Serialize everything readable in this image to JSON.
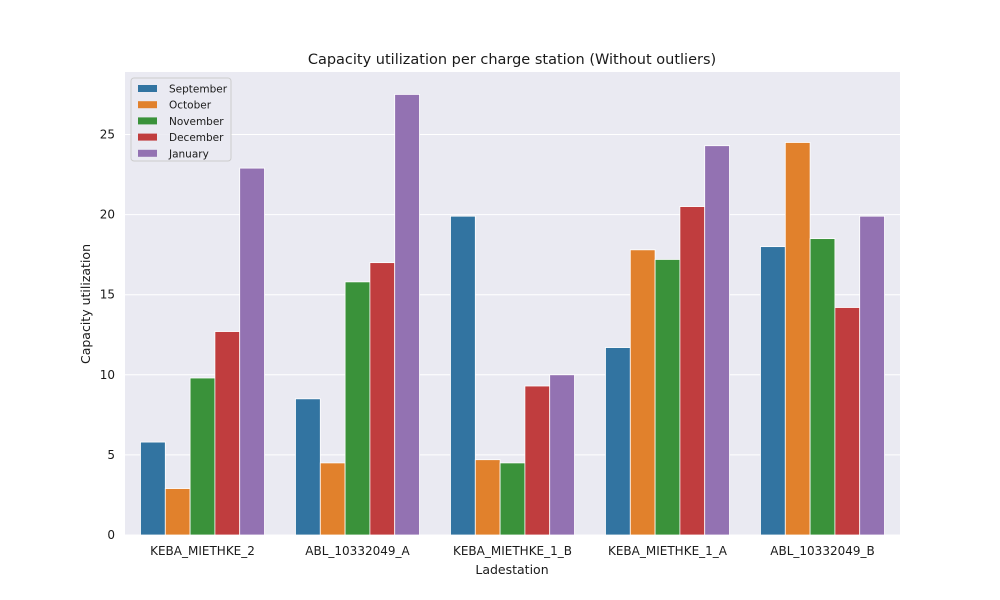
{
  "chart_data": {
    "type": "bar",
    "title": "Capacity utilization per charge station (Without outliers)",
    "xlabel": "Ladestation",
    "ylabel": "Capacity utilization",
    "categories": [
      "KEBA_MIETHKE_2",
      "ABL_10332049_A",
      "KEBA_MIETHKE_1_B",
      "KEBA_MIETHKE_1_A",
      "ABL_10332049_B"
    ],
    "series": [
      {
        "name": "September",
        "color": "#3274a1",
        "values": [
          5.8,
          8.5,
          19.9,
          11.7,
          18.0
        ]
      },
      {
        "name": "October",
        "color": "#e1812c",
        "values": [
          2.9,
          4.5,
          4.7,
          17.8,
          24.5
        ]
      },
      {
        "name": "November",
        "color": "#3a923a",
        "values": [
          9.8,
          15.8,
          4.5,
          17.2,
          18.5
        ]
      },
      {
        "name": "December",
        "color": "#c03d3e",
        "values": [
          12.7,
          17.0,
          9.3,
          20.5,
          14.2
        ]
      },
      {
        "name": "January",
        "color": "#9372b2",
        "values": [
          22.9,
          27.5,
          10.0,
          24.3,
          19.9
        ]
      }
    ],
    "yticks": [
      0,
      5,
      10,
      15,
      20,
      25
    ],
    "ylim": [
      0,
      28.9
    ],
    "grid": true,
    "legend_position": "top-left",
    "background_color": "#eaeaf2",
    "grid_color": "#ffffff"
  }
}
